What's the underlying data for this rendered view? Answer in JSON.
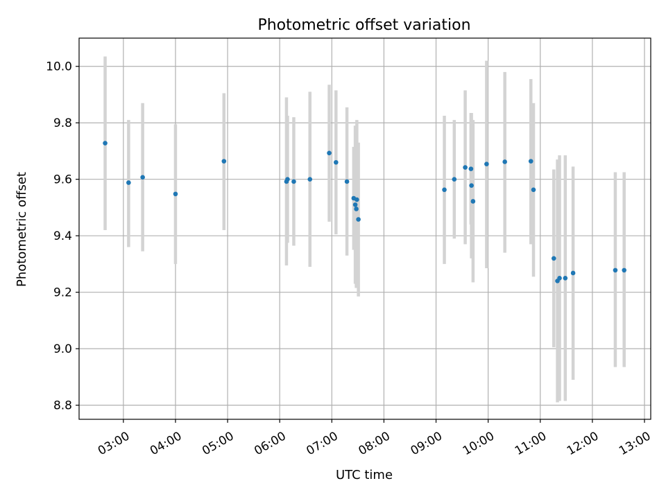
{
  "chart_data": {
    "type": "scatter",
    "title": "Photometric offset variation",
    "xlabel": "UTC time",
    "ylabel": "Photometric offset",
    "x_unit": "hours (UTC)",
    "xlim": [
      2.15,
      13.12
    ],
    "ylim": [
      8.75,
      10.1
    ],
    "grid": true,
    "x_ticks": [
      {
        "value": 3,
        "label": "03:00"
      },
      {
        "value": 4,
        "label": "04:00"
      },
      {
        "value": 5,
        "label": "05:00"
      },
      {
        "value": 6,
        "label": "06:00"
      },
      {
        "value": 7,
        "label": "07:00"
      },
      {
        "value": 8,
        "label": "08:00"
      },
      {
        "value": 9,
        "label": "09:00"
      },
      {
        "value": 10,
        "label": "10:00"
      },
      {
        "value": 11,
        "label": "11:00"
      },
      {
        "value": 12,
        "label": "12:00"
      },
      {
        "value": 13,
        "label": "13:00"
      }
    ],
    "y_ticks": [
      {
        "value": 8.8,
        "label": "8.8"
      },
      {
        "value": 9.0,
        "label": "9.0"
      },
      {
        "value": 9.2,
        "label": "9.2"
      },
      {
        "value": 9.4,
        "label": "9.4"
      },
      {
        "value": 9.6,
        "label": "9.6"
      },
      {
        "value": 9.8,
        "label": "9.8"
      },
      {
        "value": 10.0,
        "label": "10.0"
      }
    ],
    "colors": {
      "point": "#1f77b4",
      "errorbar": "#d3d3d3",
      "grid": "#b0b0b0"
    },
    "points": [
      {
        "x": 2.65,
        "y": 9.728,
        "lo": 9.42,
        "hi": 10.035
      },
      {
        "x": 3.1,
        "y": 9.588,
        "lo": 9.36,
        "hi": 9.81
      },
      {
        "x": 3.37,
        "y": 9.607,
        "lo": 9.345,
        "hi": 9.87
      },
      {
        "x": 4.0,
        "y": 9.548,
        "lo": 9.3,
        "hi": 9.795
      },
      {
        "x": 4.93,
        "y": 9.664,
        "lo": 9.42,
        "hi": 9.905
      },
      {
        "x": 6.13,
        "y": 9.592,
        "lo": 9.295,
        "hi": 9.89
      },
      {
        "x": 6.15,
        "y": 9.6,
        "lo": 9.375,
        "hi": 9.825
      },
      {
        "x": 6.27,
        "y": 9.592,
        "lo": 9.365,
        "hi": 9.82
      },
      {
        "x": 6.58,
        "y": 9.6,
        "lo": 9.29,
        "hi": 9.91
      },
      {
        "x": 6.95,
        "y": 9.693,
        "lo": 9.45,
        "hi": 9.935
      },
      {
        "x": 7.08,
        "y": 9.66,
        "lo": 9.405,
        "hi": 9.915
      },
      {
        "x": 7.29,
        "y": 9.592,
        "lo": 9.33,
        "hi": 9.855
      },
      {
        "x": 7.42,
        "y": 9.533,
        "lo": 9.35,
        "hi": 9.715
      },
      {
        "x": 7.45,
        "y": 9.51,
        "lo": 9.23,
        "hi": 9.79
      },
      {
        "x": 7.47,
        "y": 9.495,
        "lo": 9.215,
        "hi": 9.775
      },
      {
        "x": 7.48,
        "y": 9.528,
        "lo": 9.245,
        "hi": 9.81
      },
      {
        "x": 7.51,
        "y": 9.458,
        "lo": 9.185,
        "hi": 9.73
      },
      {
        "x": 9.16,
        "y": 9.563,
        "lo": 9.3,
        "hi": 9.825
      },
      {
        "x": 9.35,
        "y": 9.6,
        "lo": 9.39,
        "hi": 9.81
      },
      {
        "x": 9.56,
        "y": 9.642,
        "lo": 9.37,
        "hi": 9.915
      },
      {
        "x": 9.67,
        "y": 9.637,
        "lo": 9.44,
        "hi": 9.835
      },
      {
        "x": 9.68,
        "y": 9.578,
        "lo": 9.32,
        "hi": 9.835
      },
      {
        "x": 9.71,
        "y": 9.522,
        "lo": 9.235,
        "hi": 9.81
      },
      {
        "x": 9.97,
        "y": 9.654,
        "lo": 9.285,
        "hi": 10.02
      },
      {
        "x": 10.32,
        "y": 9.662,
        "lo": 9.34,
        "hi": 9.98
      },
      {
        "x": 10.82,
        "y": 9.664,
        "lo": 9.37,
        "hi": 9.955
      },
      {
        "x": 10.87,
        "y": 9.563,
        "lo": 9.255,
        "hi": 9.87
      },
      {
        "x": 11.26,
        "y": 9.32,
        "lo": 9.005,
        "hi": 9.635
      },
      {
        "x": 11.33,
        "y": 9.24,
        "lo": 8.81,
        "hi": 9.67
      },
      {
        "x": 11.37,
        "y": 9.25,
        "lo": 8.815,
        "hi": 9.685
      },
      {
        "x": 11.48,
        "y": 9.25,
        "lo": 8.815,
        "hi": 9.685
      },
      {
        "x": 11.63,
        "y": 9.268,
        "lo": 8.89,
        "hi": 9.645
      },
      {
        "x": 12.44,
        "y": 9.278,
        "lo": 8.935,
        "hi": 9.625
      },
      {
        "x": 12.61,
        "y": 9.278,
        "lo": 8.935,
        "hi": 9.625
      }
    ]
  }
}
